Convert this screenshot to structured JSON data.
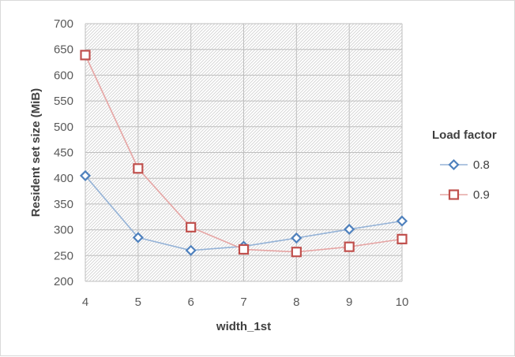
{
  "chart_data": {
    "type": "line",
    "title": "",
    "xlabel": "width_1st",
    "ylabel": "Resident set size (MiB)",
    "x": [
      4,
      5,
      6,
      7,
      8,
      9,
      10
    ],
    "ylim": [
      200,
      700
    ],
    "y_ticks": [
      200,
      250,
      300,
      350,
      400,
      450,
      500,
      550,
      600,
      650,
      700
    ],
    "grid": true,
    "legend": {
      "title": "Load factor",
      "position": "right"
    },
    "series": [
      {
        "name": "0.8",
        "color": "#4f81bd",
        "line_color": "#95b3d7",
        "marker": "diamond",
        "values": [
          405,
          285,
          260,
          268,
          284,
          301,
          317
        ]
      },
      {
        "name": "0.9",
        "color": "#c0504d",
        "line_color": "#e6a5a4",
        "marker": "square",
        "values": [
          639,
          419,
          305,
          262,
          257,
          267,
          282
        ]
      }
    ]
  }
}
